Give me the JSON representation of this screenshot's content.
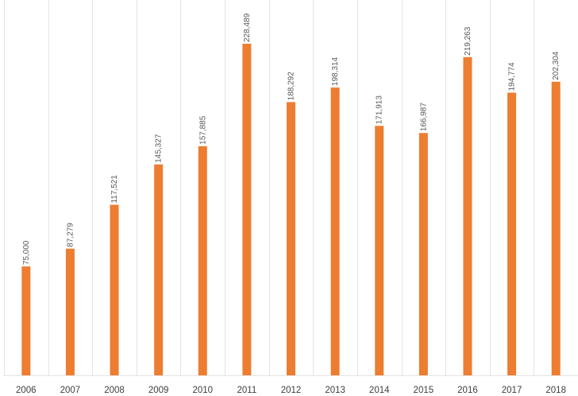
{
  "chart_data": {
    "type": "bar",
    "title": "",
    "xlabel": "",
    "ylabel": "",
    "categories": [
      "2006",
      "2007",
      "2008",
      "2009",
      "2010",
      "2011",
      "2012",
      "2013",
      "2014",
      "2015",
      "2016",
      "2017",
      "2018"
    ],
    "values": [
      75000,
      87279,
      117521,
      145327,
      157885,
      228489,
      188292,
      198314,
      171913,
      166987,
      219263,
      194774,
      202304
    ],
    "data_labels": [
      "75,000",
      "87,279",
      "117,521",
      "145,327",
      "157,885",
      "228,489",
      "188,292",
      "198,314",
      "171,913",
      "166,987",
      "219,263",
      "194,774",
      "202,304"
    ],
    "ylim": [
      0,
      250000
    ],
    "grid": "vertical category separators",
    "legend": "none",
    "colors": {
      "bar": "#ed7d31",
      "grid": "#e3e3e3",
      "text": "#404040"
    }
  }
}
